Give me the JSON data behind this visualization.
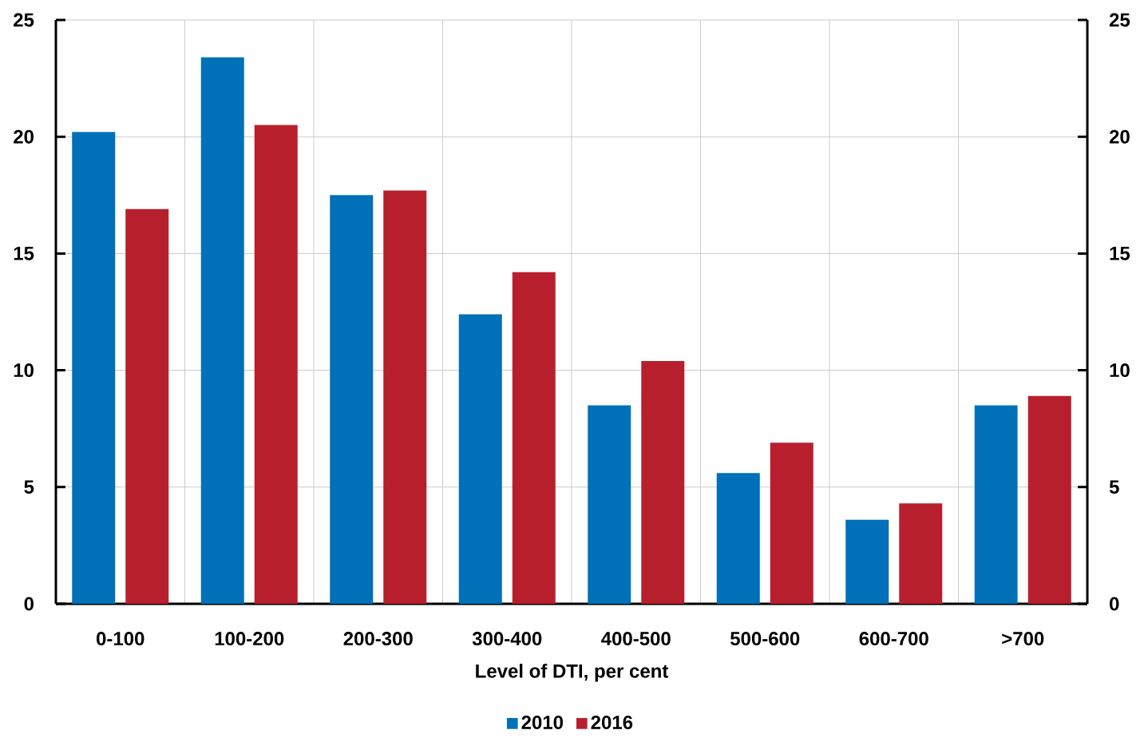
{
  "chart_data": {
    "type": "bar",
    "categories": [
      "0-100",
      "100-200",
      "200-300",
      "300-400",
      "400-500",
      "500-600",
      "600-700",
      ">700"
    ],
    "xlabel": "Level of DTI, per cent",
    "series": [
      {
        "name": "2010",
        "color": "#0070b8",
        "values": [
          20.2,
          23.4,
          17.5,
          12.4,
          8.5,
          5.6,
          3.6,
          8.5
        ]
      },
      {
        "name": "2016",
        "color": "#b81f2d",
        "values": [
          16.9,
          20.5,
          17.7,
          14.2,
          10.4,
          6.9,
          4.3,
          8.9
        ]
      }
    ],
    "ylim": [
      0,
      25
    ],
    "yticks": [
      0,
      5,
      10,
      15,
      20,
      25
    ],
    "y2lim": [
      0,
      25
    ],
    "y2ticks": [
      0,
      5,
      10,
      15,
      20,
      25
    ],
    "grid": true,
    "legend": "bottom"
  }
}
